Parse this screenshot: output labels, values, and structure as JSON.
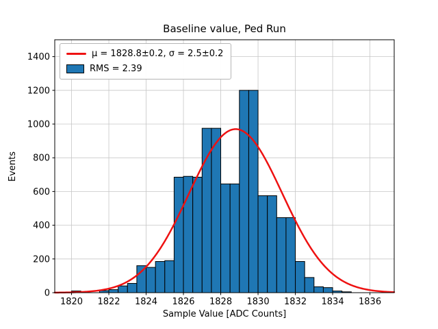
{
  "figure": {
    "title": "Baseline value, Ped Run",
    "xlabel": "Sample Value [ADC Counts]",
    "ylabel": "Events"
  },
  "legend": {
    "position": "upper left",
    "entries": [
      {
        "type": "line",
        "label": "μ = 1828.8±0.2, σ = 2.5±0.2"
      },
      {
        "type": "patch",
        "label": "RMS = 2.39"
      }
    ]
  },
  "chart_data": {
    "type": "bar",
    "subtype": "histogram-with-gaussian-fit",
    "title": "Baseline value, Ped Run",
    "xlabel": "Sample Value [ADC Counts]",
    "ylabel": "Events",
    "xlim": [
      1819.1,
      1837.3
    ],
    "ylim": [
      0,
      1500
    ],
    "xticks": [
      1820,
      1822,
      1824,
      1826,
      1828,
      1830,
      1832,
      1834,
      1836
    ],
    "yticks": [
      0,
      200,
      400,
      600,
      800,
      1000,
      1200,
      1400
    ],
    "grid": true,
    "legend_position": "upper left",
    "bin_width": 0.5,
    "bins": [
      [
        1820.0,
        10
      ],
      [
        1821.5,
        12
      ],
      [
        1822.0,
        18
      ],
      [
        1822.5,
        40
      ],
      [
        1823.0,
        55
      ],
      [
        1823.5,
        160
      ],
      [
        1824.0,
        150
      ],
      [
        1824.5,
        185
      ],
      [
        1825.0,
        190
      ],
      [
        1825.5,
        685
      ],
      [
        1826.0,
        690
      ],
      [
        1826.5,
        685
      ],
      [
        1827.0,
        975
      ],
      [
        1827.5,
        975
      ],
      [
        1828.0,
        645
      ],
      [
        1828.5,
        645
      ],
      [
        1829.0,
        1200
      ],
      [
        1829.5,
        1200
      ],
      [
        1830.0,
        575
      ],
      [
        1830.5,
        575
      ],
      [
        1831.0,
        445
      ],
      [
        1831.5,
        445
      ],
      [
        1832.0,
        185
      ],
      [
        1832.5,
        90
      ],
      [
        1833.0,
        35
      ],
      [
        1833.5,
        30
      ],
      [
        1834.0,
        10
      ],
      [
        1834.5,
        5
      ]
    ],
    "fit": {
      "type": "gaussian",
      "mu": 1828.8,
      "mu_err": 0.2,
      "sigma": 2.5,
      "sigma_err": 0.2,
      "amplitude": 970
    },
    "rms": 2.39,
    "colors": {
      "bar": "#1f77b4",
      "bar_edge": "#000000",
      "fit_line": "#ee1111",
      "grid": "#c6c6c6",
      "spine": "#000000"
    }
  }
}
